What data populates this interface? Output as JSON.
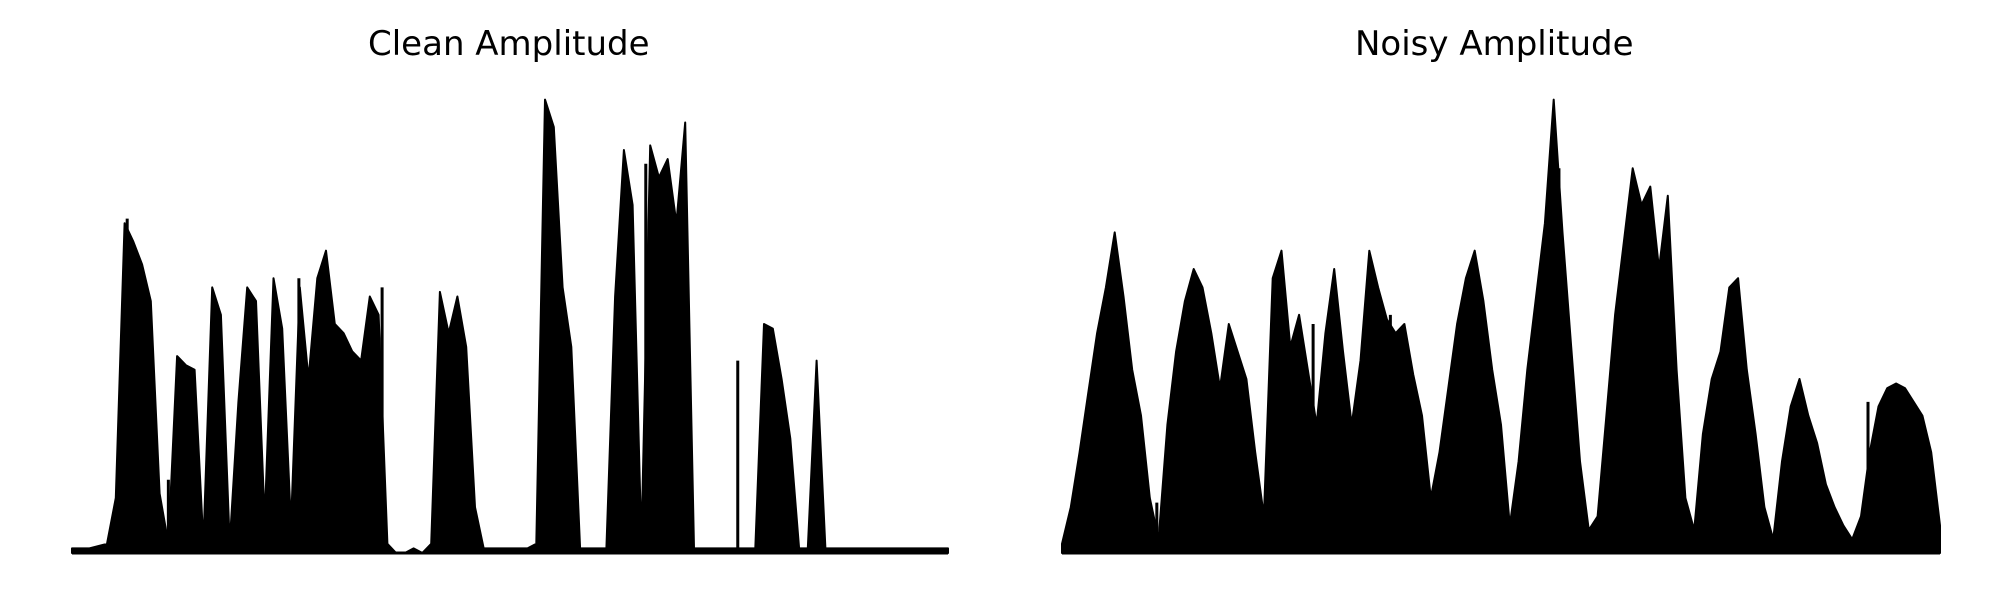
{
  "chart_data": [
    {
      "type": "area",
      "title": "Clean Amplitude",
      "xlabel": "",
      "ylabel": "",
      "axes_visible": false,
      "grid": false,
      "color": "#000000",
      "x": [
        0,
        2,
        4,
        5,
        6,
        7,
        8,
        9,
        10,
        11,
        12,
        13,
        14,
        15,
        16,
        17,
        18,
        19,
        20,
        21,
        22,
        23,
        24,
        25,
        26,
        27,
        28,
        29,
        30,
        31,
        32,
        33,
        34,
        35,
        36,
        37,
        38,
        39,
        40,
        41,
        42,
        43,
        44,
        45,
        46,
        47,
        48,
        49,
        50,
        51,
        52,
        53,
        54,
        55,
        56,
        57,
        58,
        59,
        60,
        61,
        62,
        63,
        64,
        65,
        66,
        67,
        68,
        69,
        70,
        71,
        72,
        73,
        74,
        75,
        76,
        77,
        78,
        79,
        80,
        81,
        82,
        83,
        84,
        85,
        86,
        87,
        88,
        89,
        90,
        92,
        94,
        96,
        98,
        100
      ],
      "y": [
        0.01,
        0.01,
        0.02,
        0.12,
        0.72,
        0.68,
        0.63,
        0.55,
        0.13,
        0.02,
        0.43,
        0.41,
        0.4,
        0.02,
        0.58,
        0.52,
        0.02,
        0.33,
        0.58,
        0.55,
        0.07,
        0.6,
        0.49,
        0.06,
        0.58,
        0.38,
        0.6,
        0.66,
        0.5,
        0.48,
        0.44,
        0.42,
        0.56,
        0.52,
        0.02,
        0.0,
        0.0,
        0.01,
        0.0,
        0.02,
        0.57,
        0.48,
        0.56,
        0.45,
        0.1,
        0.01,
        0.01,
        0.01,
        0.01,
        0.01,
        0.01,
        0.02,
        0.99,
        0.93,
        0.58,
        0.45,
        0.01,
        0.01,
        0.01,
        0.01,
        0.56,
        0.88,
        0.76,
        0.02,
        0.89,
        0.82,
        0.86,
        0.72,
        0.94,
        0.01,
        0.01,
        0.01,
        0.01,
        0.01,
        0.01,
        0.01,
        0.01,
        0.5,
        0.49,
        0.38,
        0.25,
        0.01,
        0.01,
        0.42,
        0.01,
        0.01,
        0.01,
        0.01,
        0.01,
        0.01,
        0.01,
        0.01,
        0.01,
        0.01
      ],
      "spikes": [
        {
          "x": 6.3,
          "y": 0.73
        },
        {
          "x": 11.0,
          "y": 0.16
        },
        {
          "x": 25.9,
          "y": 0.6
        },
        {
          "x": 35.4,
          "y": 0.58
        },
        {
          "x": 65.5,
          "y": 0.85
        },
        {
          "x": 76.0,
          "y": 0.42
        }
      ]
    },
    {
      "type": "area",
      "title": "Noisy Amplitude",
      "xlabel": "",
      "ylabel": "",
      "axes_visible": false,
      "grid": false,
      "color": "#000000",
      "x": [
        0,
        1,
        2,
        3,
        4,
        5,
        6,
        7,
        8,
        9,
        10,
        11,
        12,
        13,
        14,
        15,
        16,
        17,
        18,
        19,
        20,
        21,
        22,
        23,
        24,
        25,
        26,
        27,
        28,
        29,
        30,
        31,
        32,
        33,
        34,
        35,
        36,
        37,
        38,
        39,
        40,
        41,
        42,
        43,
        44,
        45,
        46,
        47,
        48,
        49,
        50,
        51,
        52,
        53,
        54,
        55,
        56,
        57,
        58,
        59,
        60,
        61,
        62,
        63,
        64,
        65,
        66,
        67,
        68,
        69,
        70,
        71,
        72,
        73,
        74,
        75,
        76,
        77,
        78,
        79,
        80,
        81,
        82,
        83,
        84,
        85,
        86,
        87,
        88,
        89,
        90,
        91,
        92,
        93,
        94,
        95,
        96,
        97,
        98,
        99,
        100
      ],
      "y": [
        0.02,
        0.1,
        0.22,
        0.35,
        0.48,
        0.58,
        0.7,
        0.56,
        0.4,
        0.3,
        0.12,
        0.03,
        0.28,
        0.44,
        0.55,
        0.62,
        0.58,
        0.48,
        0.36,
        0.5,
        0.44,
        0.38,
        0.22,
        0.08,
        0.6,
        0.66,
        0.45,
        0.52,
        0.4,
        0.28,
        0.48,
        0.62,
        0.44,
        0.28,
        0.42,
        0.66,
        0.58,
        0.51,
        0.48,
        0.5,
        0.39,
        0.3,
        0.12,
        0.22,
        0.36,
        0.5,
        0.6,
        0.66,
        0.55,
        0.4,
        0.28,
        0.06,
        0.2,
        0.4,
        0.56,
        0.72,
        0.99,
        0.7,
        0.45,
        0.2,
        0.05,
        0.08,
        0.3,
        0.52,
        0.68,
        0.84,
        0.76,
        0.8,
        0.62,
        0.78,
        0.4,
        0.12,
        0.05,
        0.26,
        0.38,
        0.44,
        0.58,
        0.6,
        0.4,
        0.26,
        0.1,
        0.03,
        0.2,
        0.32,
        0.38,
        0.3,
        0.24,
        0.15,
        0.1,
        0.06,
        0.03,
        0.08,
        0.22,
        0.32,
        0.36,
        0.37,
        0.36,
        0.33,
        0.3,
        0.22,
        0.06
      ],
      "spikes": [
        {
          "x": 10.8,
          "y": 0.11
        },
        {
          "x": 28.6,
          "y": 0.5
        },
        {
          "x": 37.4,
          "y": 0.52
        },
        {
          "x": 54.9,
          "y": 0.62
        },
        {
          "x": 56.6,
          "y": 0.84
        },
        {
          "x": 91.8,
          "y": 0.33
        }
      ]
    }
  ]
}
